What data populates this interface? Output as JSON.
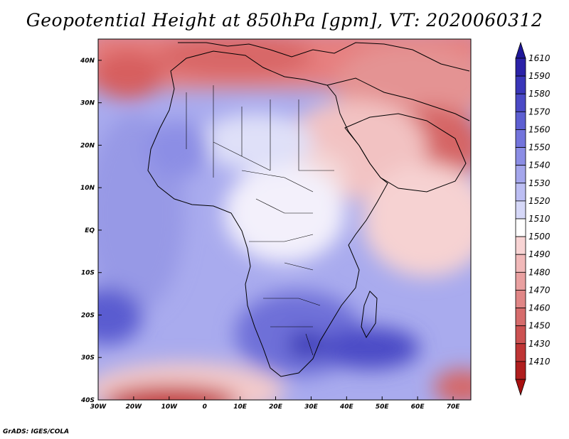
{
  "title": "Geopotential Height at 850hPa [gpm], VT: 2020060312",
  "credit": "GrADS: IGES/COLA",
  "map": {
    "region": "Africa and Middle East",
    "field": "850hPa geopotential height",
    "lon_range": [
      -30,
      75
    ],
    "lat_range": [
      -40,
      45
    ],
    "lat_ticks": [
      "40N",
      "30N",
      "20N",
      "10N",
      "EQ",
      "10S",
      "20S",
      "30S",
      "40S"
    ],
    "lon_ticks": [
      "30W",
      "20W",
      "10W",
      "0",
      "10E",
      "20E",
      "30E",
      "40E",
      "50E",
      "60E",
      "70E"
    ]
  },
  "colorbar": {
    "labels": [
      "1610",
      "1590",
      "1580",
      "1570",
      "1560",
      "1550",
      "1540",
      "1530",
      "1520",
      "1510",
      "1500",
      "1490",
      "1480",
      "1470",
      "1460",
      "1450",
      "1430",
      "1410"
    ],
    "colors": [
      "#2b22a8",
      "#3a36b9",
      "#4b4ac6",
      "#5d5fd2",
      "#7374dc",
      "#8b8de5",
      "#a4a6ec",
      "#bcbef3",
      "#d6d8f8",
      "#ffffff",
      "#f8d4d4",
      "#f1b9b9",
      "#e9a0a0",
      "#e08686",
      "#d66c6c",
      "#cc5252",
      "#bf3535",
      "#b01e1e"
    ],
    "top_color": "#1f1799",
    "bottom_color": "#a81010"
  }
}
